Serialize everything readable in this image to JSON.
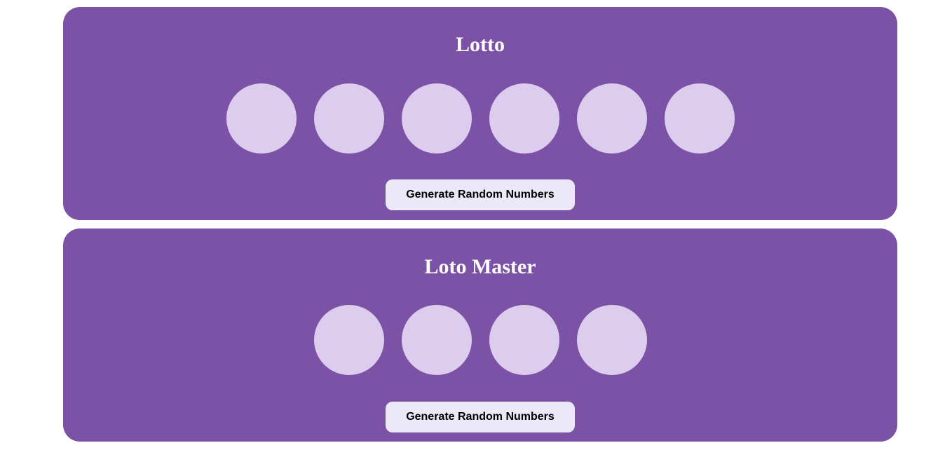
{
  "colors": {
    "panel_background": "#7b52a5",
    "ball_background": "#dccdef",
    "button_background": "#ebe8f8",
    "title_color": "#ffffff"
  },
  "games": [
    {
      "title": "Lotto",
      "balls": [
        "",
        "",
        "",
        "",
        "",
        ""
      ],
      "button_label": "Generate Random Numbers"
    },
    {
      "title": "Loto Master",
      "balls": [
        "",
        "",
        "",
        ""
      ],
      "button_label": "Generate Random Numbers"
    }
  ]
}
